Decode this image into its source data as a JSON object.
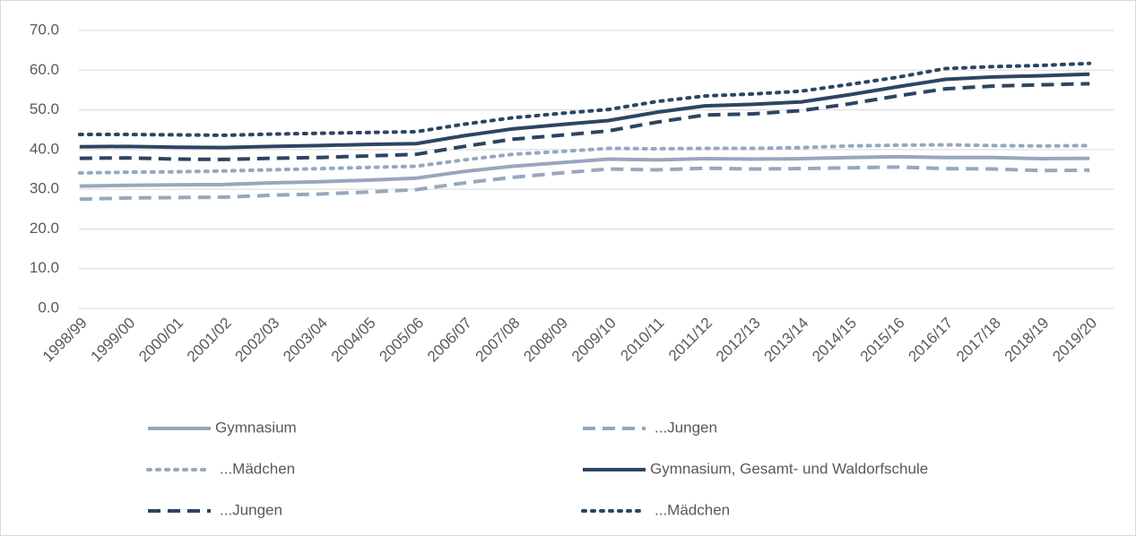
{
  "chart_data": {
    "type": "line",
    "categories": [
      "1998/99",
      "1999/00",
      "2000/01",
      "2001/02",
      "2002/03",
      "2003/04",
      "2004/05",
      "2005/06",
      "2006/07",
      "2007/08",
      "2008/09",
      "2009/10",
      "2010/11",
      "2011/12",
      "2012/13",
      "2013/14",
      "2014/15",
      "2015/16",
      "2016/17",
      "2017/18",
      "2018/19",
      "2019/20"
    ],
    "series": [
      {
        "name": "Gymnasium",
        "color": "#97a8bd",
        "dash": "solid",
        "values": [
          30.8,
          31.0,
          31.1,
          31.2,
          31.6,
          31.9,
          32.3,
          32.8,
          34.5,
          35.8,
          36.7,
          37.6,
          37.4,
          37.7,
          37.6,
          37.7,
          38.0,
          38.2,
          38.0,
          38.0,
          37.7,
          37.8
        ]
      },
      {
        "name": "...Jungen",
        "color": "#97a8bd",
        "dash": "dashed",
        "values": [
          27.5,
          27.8,
          27.9,
          28.0,
          28.5,
          28.8,
          29.3,
          29.9,
          31.6,
          33.0,
          34.1,
          35.1,
          34.9,
          35.3,
          35.1,
          35.2,
          35.4,
          35.6,
          35.2,
          35.1,
          34.7,
          34.8
        ]
      },
      {
        "name": "...Mädchen",
        "color": "#97a8bd",
        "dash": "dotted",
        "values": [
          34.1,
          34.3,
          34.4,
          34.6,
          34.9,
          35.2,
          35.5,
          35.8,
          37.4,
          38.8,
          39.5,
          40.3,
          40.2,
          40.3,
          40.3,
          40.5,
          40.9,
          41.1,
          41.2,
          41.0,
          40.9,
          41.0
        ]
      },
      {
        "name": "Gymnasium, Gesamt- und Waldorfschule",
        "color": "#2d4561",
        "dash": "solid",
        "values": [
          40.7,
          40.8,
          40.6,
          40.5,
          40.8,
          41.0,
          41.3,
          41.5,
          43.5,
          45.2,
          46.3,
          47.3,
          49.4,
          51.0,
          51.4,
          52.0,
          53.8,
          55.8,
          57.7,
          58.3,
          58.6,
          59.0
        ]
      },
      {
        "name": "...Jungen",
        "color": "#2d4561",
        "dash": "dashed",
        "values": [
          37.8,
          37.9,
          37.6,
          37.5,
          37.8,
          38.0,
          38.4,
          38.8,
          40.8,
          42.6,
          43.6,
          44.7,
          46.9,
          48.7,
          49.0,
          49.8,
          51.5,
          53.5,
          55.3,
          56.0,
          56.3,
          56.6
        ]
      },
      {
        "name": "...Mädchen",
        "color": "#2d4561",
        "dash": "dotted",
        "values": [
          43.8,
          43.8,
          43.7,
          43.6,
          43.9,
          44.1,
          44.3,
          44.5,
          46.4,
          48.0,
          49.1,
          50.1,
          52.1,
          53.5,
          54.0,
          54.7,
          56.4,
          58.2,
          60.4,
          60.9,
          61.2,
          61.7
        ]
      }
    ],
    "ylim": [
      0,
      70
    ],
    "yticks": [
      {
        "value": 0,
        "label": "0.0"
      },
      {
        "value": 10,
        "label": "10.0"
      },
      {
        "value": 20,
        "label": "20.0"
      },
      {
        "value": 30,
        "label": "30.0"
      },
      {
        "value": 40,
        "label": "40.0"
      },
      {
        "value": 50,
        "label": "50.0"
      },
      {
        "value": 60,
        "label": "60.0"
      },
      {
        "value": 70,
        "label": "70.0"
      }
    ],
    "grid": true,
    "legend": "bottom"
  }
}
